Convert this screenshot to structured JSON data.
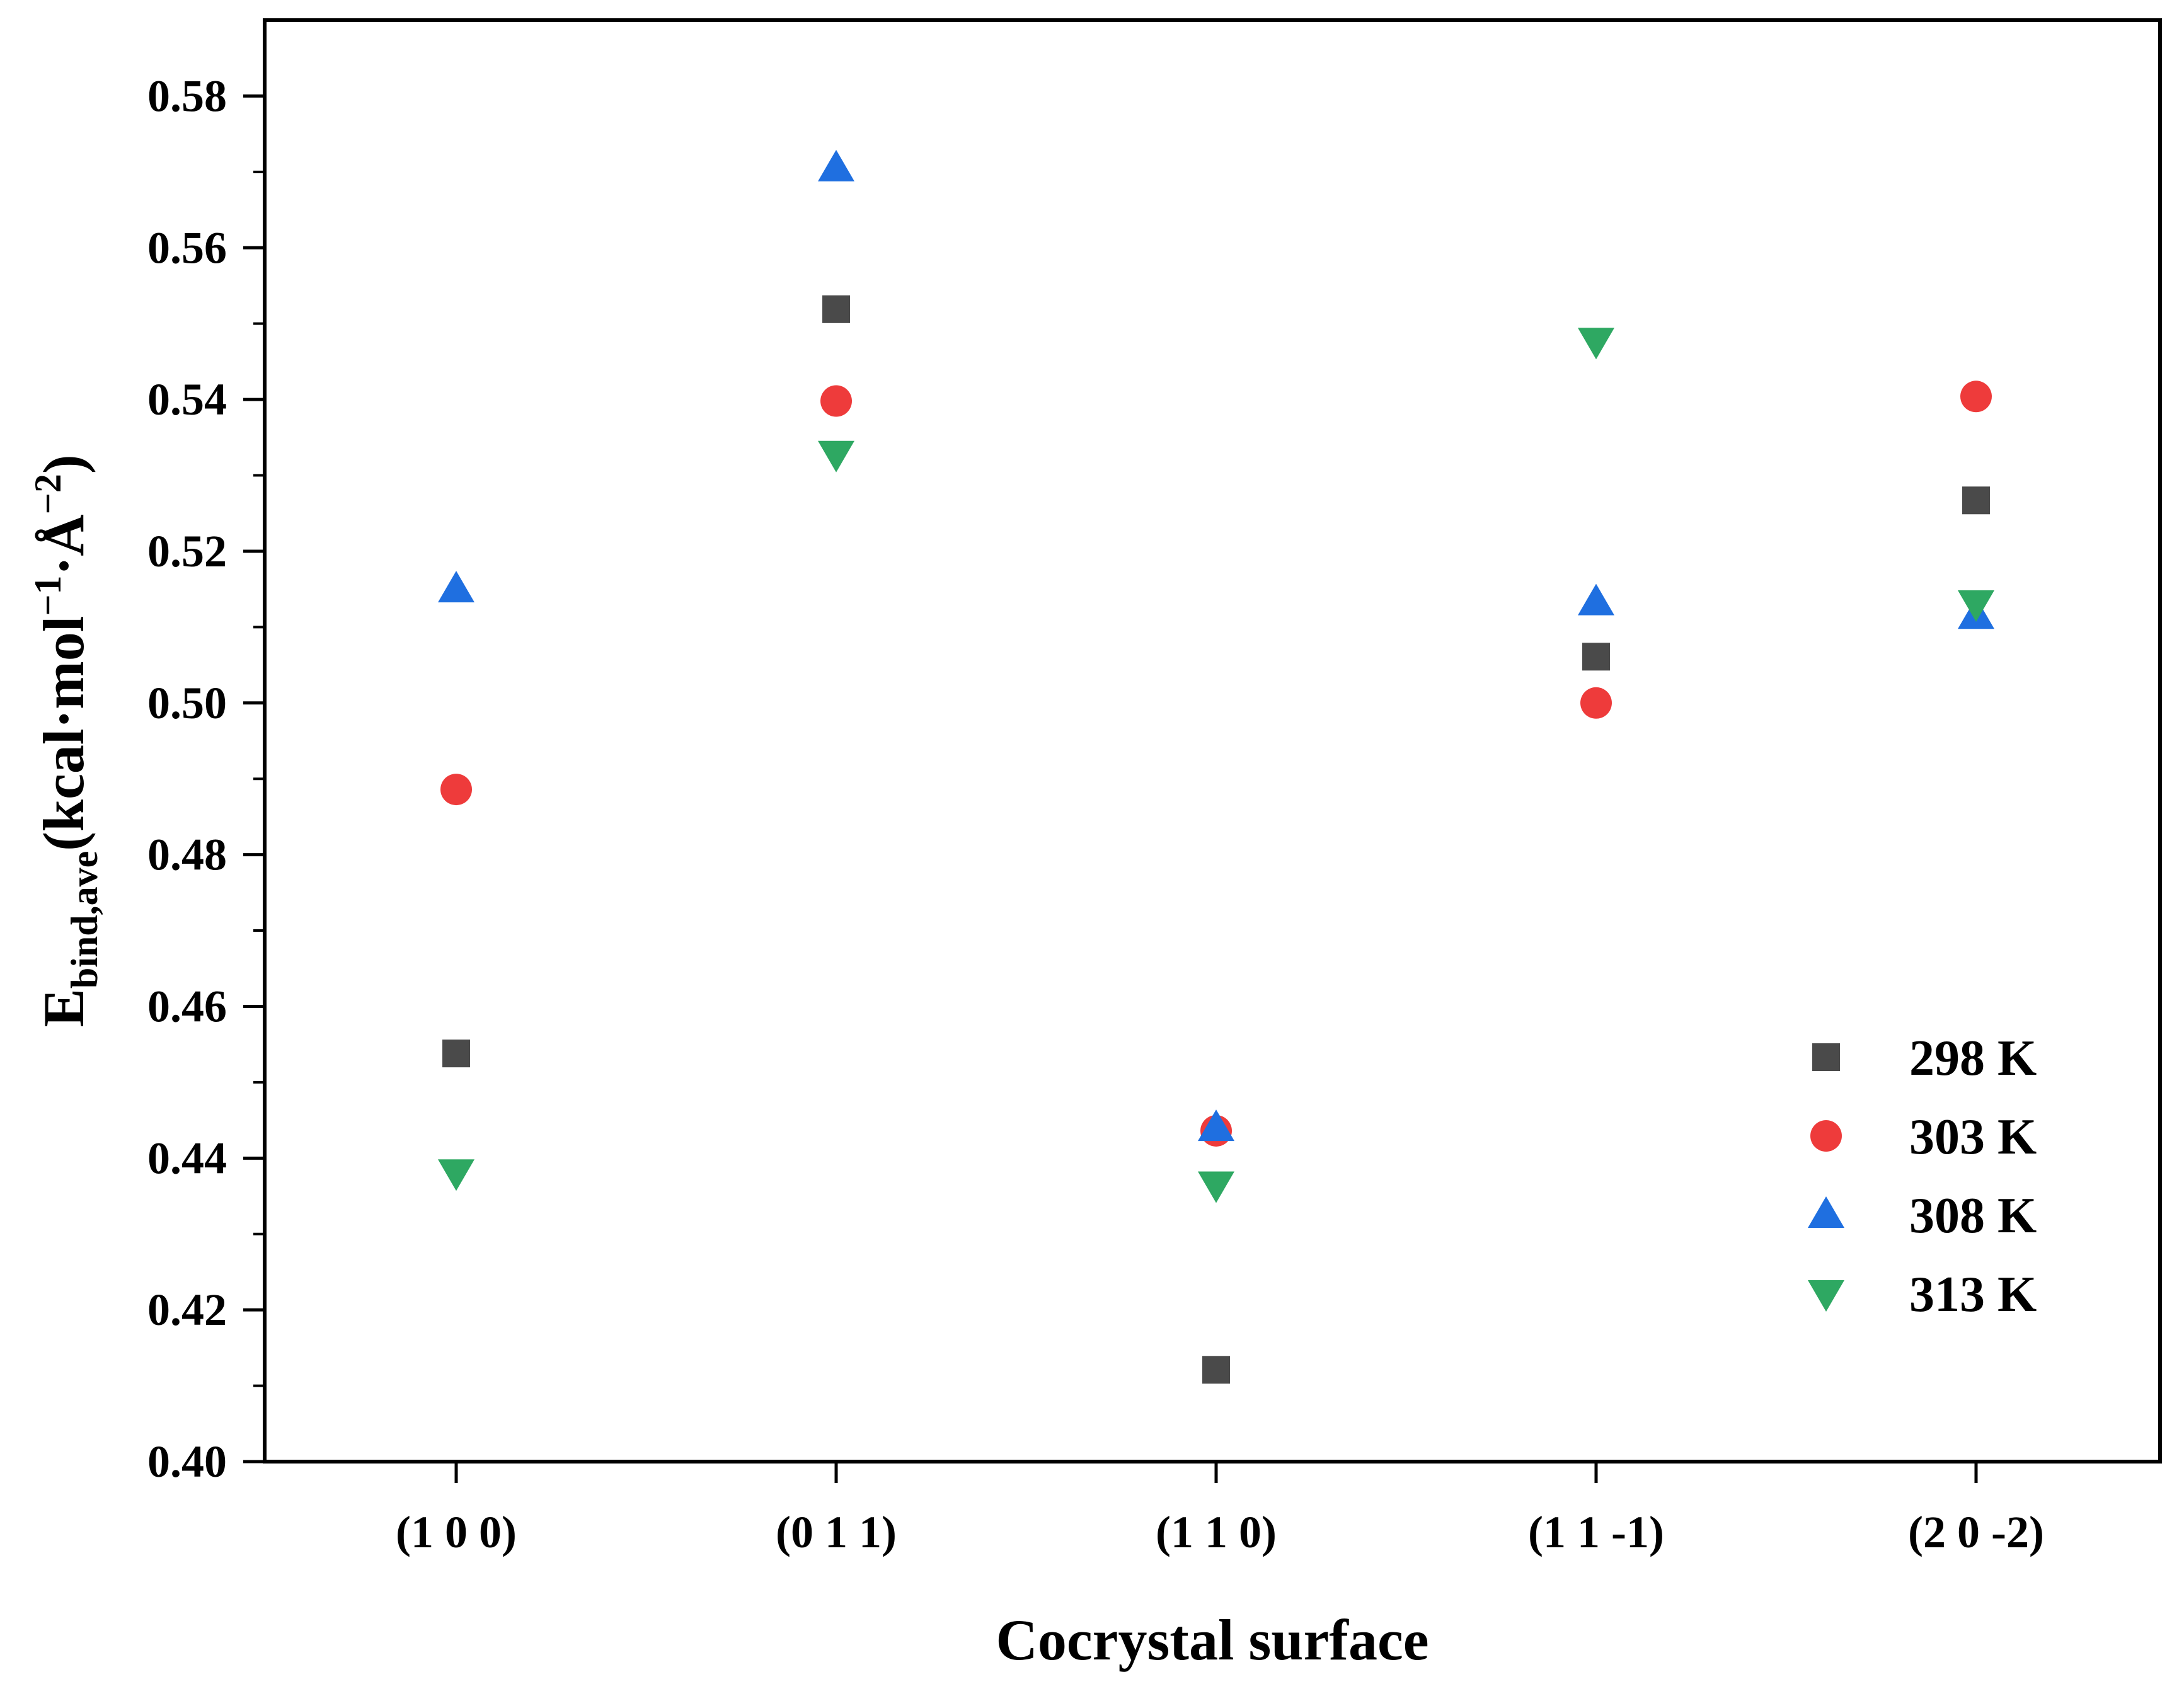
{
  "chart_data": {
    "type": "scatter",
    "title": "",
    "xlabel": "Cocrystal surface",
    "ylabel": {
      "main": "E",
      "sub": "bind,ave",
      "unit_open": "(kcal·mol",
      "exp1": "−1",
      "mid": "·Å",
      "exp2": "−2",
      "unit_close": ")"
    },
    "categories": [
      "(1 0 0)",
      "(0 1 1)",
      "(1 1 0)",
      "(1 1 -1)",
      "(2 0 -2)"
    ],
    "ylim": [
      0.4,
      0.59
    ],
    "yticks": [
      0.4,
      0.42,
      0.44,
      0.46,
      0.48,
      0.5,
      0.52,
      0.54,
      0.56,
      0.58
    ],
    "ytick_labels": [
      "0.40",
      "0.42",
      "0.44",
      "0.46",
      "0.48",
      "0.50",
      "0.52",
      "0.54",
      "0.56",
      "0.58"
    ],
    "legend_position": "bottom-right",
    "series": [
      {
        "name": "298 K",
        "marker": "square",
        "color": "#4a4a4a",
        "values": [
          0.4538,
          0.5519,
          0.4121,
          0.5061,
          0.5267
        ]
      },
      {
        "name": "303 K",
        "marker": "circle",
        "color": "#ee3b3b",
        "values": [
          0.4886,
          0.5398,
          0.4436,
          0.5,
          0.5404
        ]
      },
      {
        "name": "308 K",
        "marker": "triangle-up",
        "color": "#1f6fe0",
        "values": [
          0.515,
          0.5705,
          0.444,
          0.5133,
          0.5115
        ]
      },
      {
        "name": "313 K",
        "marker": "triangle-down",
        "color": "#2ea862",
        "values": [
          0.4381,
          0.5328,
          0.4365,
          0.5477,
          0.5131
        ]
      }
    ]
  }
}
